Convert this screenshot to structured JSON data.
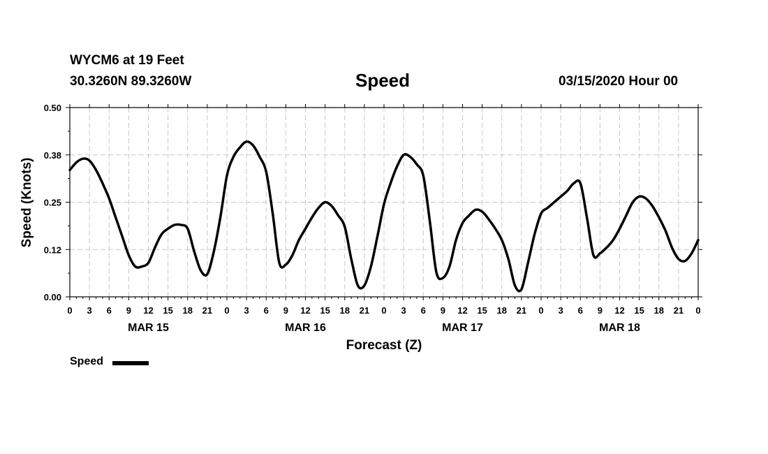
{
  "header": {
    "station": "WYCM6 at 19 Feet",
    "coords": "30.3260N 89.3260W",
    "title": "Speed",
    "date": "03/15/2020 Hour 00"
  },
  "legend": {
    "label": "Speed"
  },
  "chart_data": {
    "type": "line",
    "title": "Speed",
    "xlabel": "Forecast (Z)",
    "ylabel": "Speed (Knots)",
    "ylim": [
      0,
      0.5
    ],
    "xlim": [
      0,
      96
    ],
    "grid": true,
    "legend_position": "bottom-left",
    "yticks": [
      {
        "value": 0,
        "label": "0.00"
      },
      {
        "value": 0.125,
        "label": "0.12"
      },
      {
        "value": 0.25,
        "label": "0.25"
      },
      {
        "value": 0.375,
        "label": "0.38"
      },
      {
        "value": 0.5,
        "label": "0.50"
      }
    ],
    "xticks": [
      {
        "value": 0,
        "label": "0"
      },
      {
        "value": 3,
        "label": "3"
      },
      {
        "value": 6,
        "label": "6"
      },
      {
        "value": 9,
        "label": "9"
      },
      {
        "value": 12,
        "label": "12"
      },
      {
        "value": 15,
        "label": "15"
      },
      {
        "value": 18,
        "label": "18"
      },
      {
        "value": 21,
        "label": "21"
      },
      {
        "value": 24,
        "label": "0"
      },
      {
        "value": 27,
        "label": "3"
      },
      {
        "value": 30,
        "label": "6"
      },
      {
        "value": 33,
        "label": "9"
      },
      {
        "value": 36,
        "label": "12"
      },
      {
        "value": 39,
        "label": "15"
      },
      {
        "value": 42,
        "label": "18"
      },
      {
        "value": 45,
        "label": "21"
      },
      {
        "value": 48,
        "label": "0"
      },
      {
        "value": 51,
        "label": "3"
      },
      {
        "value": 54,
        "label": "6"
      },
      {
        "value": 57,
        "label": "9"
      },
      {
        "value": 60,
        "label": "12"
      },
      {
        "value": 63,
        "label": "15"
      },
      {
        "value": 66,
        "label": "18"
      },
      {
        "value": 69,
        "label": "21"
      },
      {
        "value": 72,
        "label": "0"
      },
      {
        "value": 75,
        "label": "3"
      },
      {
        "value": 78,
        "label": "6"
      },
      {
        "value": 81,
        "label": "9"
      },
      {
        "value": 84,
        "label": "12"
      },
      {
        "value": 87,
        "label": "15"
      },
      {
        "value": 90,
        "label": "18"
      },
      {
        "value": 93,
        "label": "21"
      },
      {
        "value": 96,
        "label": "0"
      }
    ],
    "day_labels": [
      {
        "value": 12,
        "label": "MAR 15"
      },
      {
        "value": 36,
        "label": "MAR 16"
      },
      {
        "value": 60,
        "label": "MAR 17"
      },
      {
        "value": 84,
        "label": "MAR 18"
      }
    ],
    "series": [
      {
        "name": "Speed",
        "x": [
          0,
          1,
          2,
          3,
          4,
          5,
          6,
          7,
          8,
          9,
          10,
          11,
          12,
          13,
          14,
          15,
          16,
          17,
          18,
          19,
          20,
          21,
          22,
          23,
          24,
          25,
          26,
          27,
          28,
          29,
          30,
          31,
          32,
          33,
          34,
          35,
          36,
          37,
          38,
          39,
          40,
          41,
          42,
          43,
          44,
          45,
          46,
          47,
          48,
          49,
          50,
          51,
          52,
          53,
          54,
          55,
          56,
          57,
          58,
          59,
          60,
          61,
          62,
          63,
          64,
          65,
          66,
          67,
          68,
          69,
          70,
          71,
          72,
          73,
          74,
          75,
          76,
          77,
          78,
          79,
          80,
          81,
          82,
          83,
          84,
          85,
          86,
          87,
          88,
          89,
          90,
          91,
          92,
          93,
          94,
          95,
          96
        ],
        "values": [
          0.335,
          0.355,
          0.365,
          0.36,
          0.335,
          0.3,
          0.26,
          0.21,
          0.16,
          0.11,
          0.08,
          0.08,
          0.09,
          0.13,
          0.165,
          0.18,
          0.19,
          0.19,
          0.18,
          0.12,
          0.07,
          0.06,
          0.12,
          0.21,
          0.32,
          0.37,
          0.395,
          0.41,
          0.4,
          0.37,
          0.33,
          0.22,
          0.09,
          0.085,
          0.11,
          0.15,
          0.18,
          0.21,
          0.235,
          0.25,
          0.24,
          0.215,
          0.185,
          0.1,
          0.03,
          0.03,
          0.08,
          0.16,
          0.245,
          0.3,
          0.345,
          0.375,
          0.37,
          0.35,
          0.32,
          0.2,
          0.065,
          0.05,
          0.08,
          0.15,
          0.195,
          0.215,
          0.23,
          0.225,
          0.205,
          0.18,
          0.15,
          0.1,
          0.03,
          0.02,
          0.09,
          0.165,
          0.22,
          0.235,
          0.25,
          0.265,
          0.28,
          0.3,
          0.3,
          0.21,
          0.11,
          0.115,
          0.13,
          0.15,
          0.18,
          0.215,
          0.25,
          0.265,
          0.26,
          0.24,
          0.21,
          0.175,
          0.13,
          0.1,
          0.095,
          0.115,
          0.15
        ]
      }
    ]
  }
}
